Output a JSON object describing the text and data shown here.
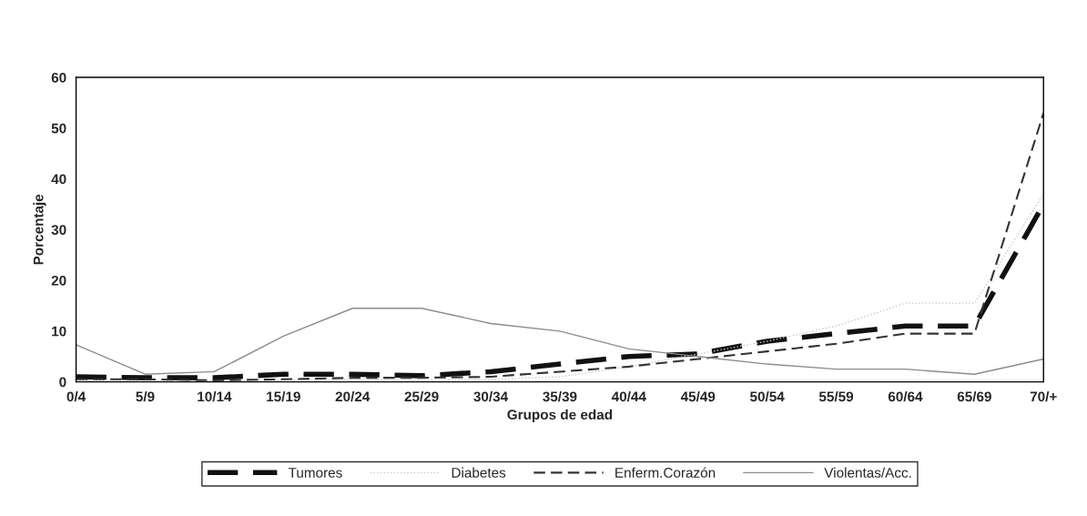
{
  "chart_data": {
    "type": "line",
    "xlabel": "Grupos de edad",
    "ylabel": "Porcentaje",
    "categories": [
      "0/4",
      "5/9",
      "10/14",
      "15/19",
      "20/24",
      "25/29",
      "30/34",
      "35/39",
      "40/44",
      "45/49",
      "50/54",
      "55/59",
      "60/64",
      "65/69",
      "70/+"
    ],
    "series": [
      {
        "name": "Tumores",
        "color": "#111111",
        "line_style": "dashed",
        "values": [
          1,
          0.8,
          0.8,
          1.5,
          1.5,
          1.2,
          2,
          3.5,
          5,
          5.5,
          8,
          9.5,
          11,
          11,
          35
        ]
      },
      {
        "name": "Diabetes",
        "color": "#c8c8c8",
        "line_style": "dotted",
        "values": [
          0.2,
          0.2,
          0.2,
          0.3,
          0.5,
          0.3,
          0.5,
          1,
          3,
          5.5,
          8,
          11,
          15.5,
          15.5,
          37
        ]
      },
      {
        "name": "Enferm.Corazón",
        "color": "#333333",
        "line_style": "dashed",
        "values": [
          0.5,
          0.5,
          0.3,
          0.5,
          0.8,
          0.8,
          1,
          2,
          3,
          4.5,
          6,
          7.5,
          9.5,
          9.5,
          53
        ]
      },
      {
        "name": "Violentas/Acc.",
        "color": "#8c8c8c",
        "line_style": "solid",
        "values": [
          7.3,
          1.5,
          2,
          9,
          14.5,
          14.5,
          11.5,
          10,
          6.5,
          5,
          3.5,
          2.5,
          2.5,
          1.5,
          4.5
        ]
      }
    ],
    "ylim": [
      0,
      60
    ],
    "yticks": [
      0,
      10,
      20,
      30,
      40,
      50,
      60
    ],
    "grid": false,
    "legend": "bottom",
    "marker": "none"
  }
}
